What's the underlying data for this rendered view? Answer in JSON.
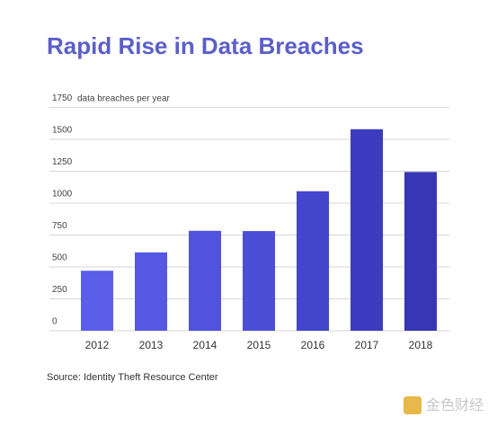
{
  "chart_data": {
    "type": "bar",
    "title": "Rapid Rise in Data Breaches",
    "y_label": "data breaches per year",
    "categories": [
      "2012",
      "2013",
      "2014",
      "2015",
      "2016",
      "2017",
      "2018"
    ],
    "values": [
      470,
      614,
      783,
      781,
      1093,
      1579,
      1244
    ],
    "colors": [
      "#5a5ee9",
      "#5558e3",
      "#5053dd",
      "#4b4ed7",
      "#4345cb",
      "#3b3cbf",
      "#3836b4"
    ],
    "ylim": [
      0,
      1750
    ],
    "yticks": [
      0,
      250,
      500,
      750,
      1000,
      1250,
      1500,
      1750
    ],
    "grid": true,
    "source": "Source: Identity Theft Resource Center"
  },
  "watermark": "金色财经"
}
